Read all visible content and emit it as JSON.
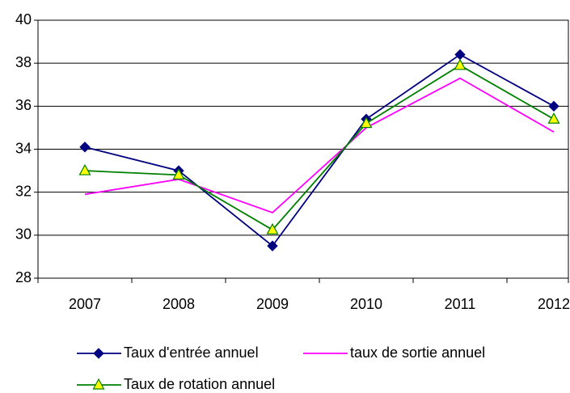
{
  "chart_data": {
    "type": "line",
    "categories": [
      "2007",
      "2008",
      "2009",
      "2010",
      "2011",
      "2012"
    ],
    "series": [
      {
        "name": "Taux d'entrée annuel",
        "color": "#000080",
        "marker": "diamond",
        "values": [
          34.1,
          33.0,
          29.5,
          35.4,
          38.4,
          36.0
        ]
      },
      {
        "name": "taux de sortie annuel",
        "color": "#ff00ff",
        "marker": "none",
        "values": [
          31.9,
          32.6,
          31.05,
          35.0,
          37.3,
          34.8
        ]
      },
      {
        "name": "Taux de rotation annuel",
        "color": "#008000",
        "marker": "triangle",
        "values": [
          33.0,
          32.8,
          30.25,
          35.2,
          37.9,
          35.4
        ]
      }
    ],
    "ylim": [
      28,
      40
    ],
    "yticks": [
      28,
      30,
      32,
      34,
      36,
      38,
      40
    ],
    "grid": true,
    "legend": "bottom"
  }
}
